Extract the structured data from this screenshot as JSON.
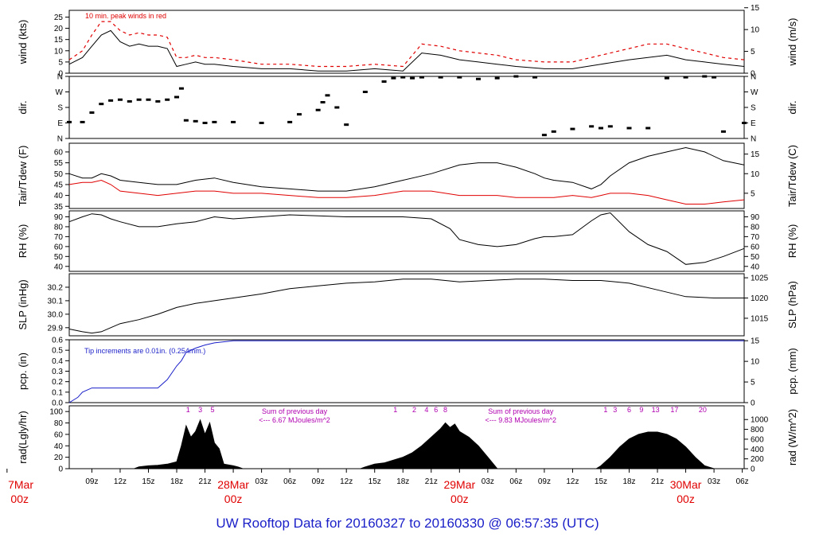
{
  "title": "UW Rooftop Data for 20160327  to  20160330 @ 06:57:35  (UTC)",
  "colors": {
    "data": "#000000",
    "dew": "#e00000",
    "gust": "#e00000",
    "pcp": "#1a1fc8",
    "notes": "#b000b0",
    "dates": "#e00000",
    "title": "#1a1fc8"
  },
  "time_axis": {
    "start_hour": 6.6,
    "end_hour": 78.2,
    "tick_labels": [
      "09z",
      "12z",
      "15z",
      "18z",
      "21z",
      "03z",
      "06z",
      "09z",
      "12z",
      "15z",
      "18z",
      "21z",
      "03z",
      "06z",
      "09z",
      "12z",
      "15z",
      "18z",
      "21z",
      "03z",
      "06z"
    ],
    "tick_hours": [
      9,
      12,
      15,
      18,
      21,
      27,
      30,
      33,
      36,
      39,
      42,
      45,
      51,
      54,
      57,
      60,
      63,
      66,
      69,
      75,
      78
    ],
    "date_labels": [
      {
        "line1": "7Mar",
        "line2": "00z",
        "hour": 0
      },
      {
        "line1": "28Mar",
        "line2": "00z",
        "hour": 24
      },
      {
        "line1": "29Mar",
        "line2": "00z",
        "hour": 48
      },
      {
        "line1": "30Mar",
        "line2": "00z",
        "hour": 72
      }
    ]
  },
  "chart_data": [
    {
      "type": "line",
      "panel": "wind",
      "ylabel": "wind (kts)",
      "ylabel_right": "wind (m/s)",
      "ylim": [
        0,
        28
      ],
      "yticks": [
        0,
        5,
        10,
        15,
        20,
        25
      ],
      "right_ticks": [
        "0",
        "5",
        "10",
        "15"
      ],
      "right_tick_values": [
        0,
        9.72,
        19.44,
        29.16
      ],
      "annotation": "10 min. peak winds in red",
      "series": [
        {
          "name": "wind",
          "x": [
            6.6,
            8,
            9,
            10,
            11,
            12,
            13,
            14,
            15,
            16,
            17,
            18,
            19,
            20,
            21,
            22,
            24,
            27,
            30,
            33,
            36,
            39,
            42,
            44,
            46,
            48,
            50,
            52,
            54,
            57,
            60,
            63,
            66,
            68,
            70,
            72,
            74,
            76,
            78.2
          ],
          "y": [
            4,
            7,
            12,
            17,
            19,
            14,
            12,
            13,
            12,
            12,
            11,
            3,
            4,
            5,
            4,
            4,
            3,
            2,
            2,
            1,
            1,
            2,
            1,
            9,
            8,
            6,
            5,
            4,
            3,
            2,
            2,
            4,
            6,
            7,
            8,
            6,
            5,
            4,
            3
          ]
        },
        {
          "name": "10 min. peak winds",
          "x": [
            6.6,
            8,
            9,
            10,
            11,
            12,
            13,
            14,
            15,
            16,
            17,
            18,
            19,
            20,
            21,
            22,
            24,
            27,
            30,
            33,
            36,
            39,
            42,
            44,
            46,
            48,
            50,
            52,
            54,
            57,
            60,
            63,
            66,
            68,
            70,
            72,
            74,
            76,
            78.2
          ],
          "y": [
            6,
            10,
            17,
            23,
            23,
            19,
            17,
            18,
            17,
            17,
            16,
            7,
            7,
            8,
            7,
            7,
            6,
            4,
            4,
            3,
            3,
            4,
            3,
            13,
            12,
            10,
            9,
            8,
            6,
            5,
            5,
            8,
            11,
            13,
            13,
            11,
            9,
            7,
            6
          ]
        }
      ]
    },
    {
      "type": "scatter",
      "panel": "dir",
      "ylabel": "dir.",
      "ylabel_right": "dir.",
      "ylim": [
        0,
        360
      ],
      "yticks": [
        0,
        90,
        180,
        270,
        360
      ],
      "tick_labels": [
        "N",
        "E",
        "S",
        "W",
        "N"
      ],
      "series": [
        {
          "name": "direction",
          "x": [
            6.6,
            8,
            9,
            10,
            11,
            12,
            13,
            14,
            15,
            16,
            17,
            18,
            18.5,
            19,
            20,
            21,
            22,
            24,
            27,
            30,
            31,
            33,
            33.5,
            34,
            35,
            36,
            38,
            40,
            41,
            42,
            43,
            44,
            46,
            48,
            50,
            52,
            54,
            56,
            57,
            58,
            60,
            62,
            63,
            64,
            66,
            68,
            70,
            72,
            74,
            75,
            76,
            78.2
          ],
          "y": [
            95,
            95,
            150,
            200,
            220,
            225,
            215,
            225,
            225,
            215,
            225,
            240,
            290,
            105,
            100,
            90,
            95,
            95,
            90,
            95,
            140,
            165,
            210,
            250,
            180,
            80,
            270,
            330,
            350,
            355,
            350,
            355,
            355,
            355,
            345,
            350,
            360,
            355,
            20,
            40,
            55,
            70,
            60,
            70,
            60,
            60,
            350,
            355,
            360,
            355,
            40,
            90
          ]
        }
      ]
    },
    {
      "type": "line",
      "panel": "temp",
      "ylabel": "Tair/Tdew (F)",
      "ylabel_right": "Tair/Tdew (C)",
      "ylim": [
        34,
        64
      ],
      "yticks": [
        35,
        40,
        45,
        50,
        55,
        60
      ],
      "right_ticks": [
        "5",
        "10",
        "15"
      ],
      "right_tick_values": [
        41,
        50,
        59
      ],
      "series": [
        {
          "name": "Tair",
          "x": [
            6.6,
            8,
            9,
            10,
            11,
            12,
            14,
            16,
            18,
            20,
            22,
            24,
            27,
            30,
            33,
            36,
            39,
            42,
            45,
            48,
            50,
            52,
            54,
            56,
            57,
            58,
            60,
            62,
            63,
            64,
            66,
            68,
            70,
            72,
            74,
            76,
            78.2
          ],
          "y": [
            50,
            48,
            48,
            50,
            49,
            47,
            46,
            45,
            45,
            47,
            48,
            46,
            44,
            43,
            42,
            42,
            44,
            47,
            50,
            54,
            55,
            55,
            53,
            50,
            48,
            47,
            46,
            43,
            45,
            49,
            55,
            58,
            60,
            62,
            60,
            56,
            54
          ]
        },
        {
          "name": "Tdew",
          "x": [
            6.6,
            8,
            9,
            10,
            11,
            12,
            14,
            16,
            18,
            20,
            22,
            24,
            27,
            30,
            33,
            36,
            39,
            42,
            45,
            48,
            50,
            52,
            54,
            56,
            57,
            58,
            60,
            62,
            63,
            64,
            66,
            68,
            70,
            72,
            74,
            76,
            78.2
          ],
          "y": [
            45,
            46,
            46,
            47,
            45,
            42,
            41,
            40,
            41,
            42,
            42,
            41,
            41,
            40,
            39,
            39,
            40,
            42,
            42,
            40,
            40,
            40,
            39,
            39,
            39,
            39,
            40,
            39,
            40,
            41,
            41,
            40,
            38,
            36,
            36,
            37,
            38
          ]
        }
      ]
    },
    {
      "type": "line",
      "panel": "rh",
      "ylabel": "RH (%)",
      "ylabel_right": "RH (%)",
      "ylim": [
        35,
        96
      ],
      "yticks": [
        40,
        50,
        60,
        70,
        80,
        90
      ],
      "right_ticks": [
        "40",
        "50",
        "60",
        "70",
        "80",
        "90"
      ],
      "right_tick_values": [
        40,
        50,
        60,
        70,
        80,
        90
      ],
      "series": [
        {
          "name": "RH",
          "x": [
            6.6,
            8,
            9,
            10,
            11,
            12,
            14,
            16,
            18,
            20,
            22,
            24,
            27,
            30,
            33,
            36,
            39,
            42,
            45,
            47,
            48,
            50,
            52,
            54,
            56,
            57,
            58,
            60,
            62,
            63,
            64,
            66,
            68,
            70,
            72,
            74,
            76,
            78.2
          ],
          "y": [
            85,
            90,
            93,
            92,
            88,
            85,
            80,
            80,
            83,
            85,
            90,
            88,
            90,
            92,
            91,
            90,
            90,
            90,
            88,
            78,
            67,
            62,
            60,
            62,
            68,
            70,
            70,
            72,
            86,
            92,
            94,
            75,
            62,
            55,
            42,
            44,
            50,
            58
          ]
        }
      ]
    },
    {
      "type": "line",
      "panel": "slp",
      "ylabel": "SLP (inHg)",
      "ylabel_right": "SLP (hPa)",
      "ylim": [
        29.84,
        30.3
      ],
      "yticks": [
        29.9,
        30.0,
        30.1,
        30.2
      ],
      "tick_labels": [
        "29.9",
        "30.0",
        "30.1",
        "30.2"
      ],
      "right_ticks": [
        "1015",
        "1020",
        "1025"
      ],
      "right_tick_values": [
        29.97,
        30.12,
        30.27
      ],
      "series": [
        {
          "name": "SLP",
          "x": [
            6.6,
            8,
            9,
            10,
            11,
            12,
            14,
            16,
            18,
            20,
            22,
            24,
            27,
            30,
            33,
            36,
            39,
            42,
            45,
            48,
            51,
            54,
            57,
            60,
            63,
            66,
            69,
            72,
            75,
            78.2
          ],
          "y": [
            29.89,
            29.87,
            29.86,
            29.87,
            29.9,
            29.93,
            29.96,
            30.0,
            30.05,
            30.08,
            30.1,
            30.12,
            30.15,
            30.19,
            30.21,
            30.23,
            30.24,
            30.26,
            30.26,
            30.24,
            30.25,
            30.26,
            30.26,
            30.25,
            30.25,
            30.23,
            30.18,
            30.13,
            30.12,
            30.12
          ]
        }
      ]
    },
    {
      "type": "line",
      "panel": "pcp",
      "ylabel": "pcp. (in)",
      "ylabel_right": "pcp. (mm)",
      "ylim": [
        0,
        0.6
      ],
      "yticks": [
        0,
        0.1,
        0.2,
        0.3,
        0.4,
        0.5,
        0.6
      ],
      "tick_labels": [
        "0.0",
        "0.1",
        "0.2",
        "0.3",
        "0.4",
        "0.5",
        "0.6"
      ],
      "right_ticks": [
        "0",
        "5",
        "10",
        "15"
      ],
      "right_tick_values": [
        0,
        0.197,
        0.394,
        0.591
      ],
      "annotation": "Tip increments are 0.01in. (0.254mm.)",
      "series": [
        {
          "name": "precipitation",
          "x": [
            6.6,
            7.5,
            8,
            8.5,
            9,
            16,
            17,
            18,
            18.5,
            19,
            20,
            21,
            22,
            24,
            78.2
          ],
          "y": [
            0,
            0.05,
            0.1,
            0.12,
            0.14,
            0.14,
            0.22,
            0.35,
            0.4,
            0.48,
            0.52,
            0.55,
            0.57,
            0.59,
            0.59
          ]
        }
      ]
    },
    {
      "type": "area",
      "panel": "rad",
      "ylabel": "rad(Lgly/hr)",
      "ylabel_right": "rad (W/m^2)",
      "ylim": [
        0,
        110
      ],
      "yticks": [
        0,
        20,
        40,
        60,
        80,
        100
      ],
      "right_ticks": [
        "0",
        "200",
        "400",
        "600",
        "800",
        "1000"
      ],
      "right_tick_values": [
        0,
        17.2,
        34.4,
        51.6,
        68.8,
        86
      ],
      "annotations": [
        {
          "text": "Sum of previous day",
          "hour": 30.5
        },
        {
          "text": "<--- 6.67 MJoules/m^2",
          "hour": 30.5
        },
        {
          "text": "Sum of previous day",
          "hour": 54.5
        },
        {
          "text": "<--- 9.83 MJoules/m^2",
          "hour": 54.5
        }
      ],
      "hour_labels": [
        {
          "text": "1",
          "hour": 19.2
        },
        {
          "text": "3",
          "hour": 20.5
        },
        {
          "text": "5",
          "hour": 21.8
        },
        {
          "text": "1",
          "hour": 41.2
        },
        {
          "text": "2",
          "hour": 43.2
        },
        {
          "text": "4",
          "hour": 44.5
        },
        {
          "text": "6",
          "hour": 45.5
        },
        {
          "text": "8",
          "hour": 46.5
        },
        {
          "text": "1",
          "hour": 63.5
        },
        {
          "text": "3",
          "hour": 64.5
        },
        {
          "text": "6",
          "hour": 66
        },
        {
          "text": "9",
          "hour": 67.3
        },
        {
          "text": "13",
          "hour": 68.8
        },
        {
          "text": "17",
          "hour": 70.8
        },
        {
          "text": "20",
          "hour": 73.8
        }
      ],
      "series": [
        {
          "name": "radiation",
          "x": [
            6.6,
            13.5,
            14,
            15,
            16,
            17,
            18,
            18.5,
            19,
            19.5,
            20,
            20.5,
            21,
            21.5,
            22,
            22.5,
            23,
            24,
            24.5,
            25,
            37.5,
            38,
            39,
            40,
            41,
            42,
            43,
            44,
            45,
            46,
            46.5,
            47,
            47.5,
            48,
            49,
            50,
            51,
            52,
            62.5,
            63,
            64,
            65,
            66,
            67,
            68,
            69,
            70,
            71,
            72,
            73,
            74,
            75,
            78.2
          ],
          "y": [
            0,
            0,
            3,
            5,
            6,
            8,
            12,
            40,
            75,
            55,
            65,
            85,
            60,
            80,
            45,
            35,
            8,
            5,
            3,
            0,
            0,
            3,
            8,
            10,
            15,
            20,
            28,
            40,
            55,
            70,
            80,
            72,
            78,
            65,
            55,
            40,
            20,
            0,
            0,
            5,
            20,
            38,
            52,
            60,
            64,
            64,
            60,
            52,
            38,
            20,
            5,
            0,
            0
          ]
        }
      ]
    }
  ]
}
